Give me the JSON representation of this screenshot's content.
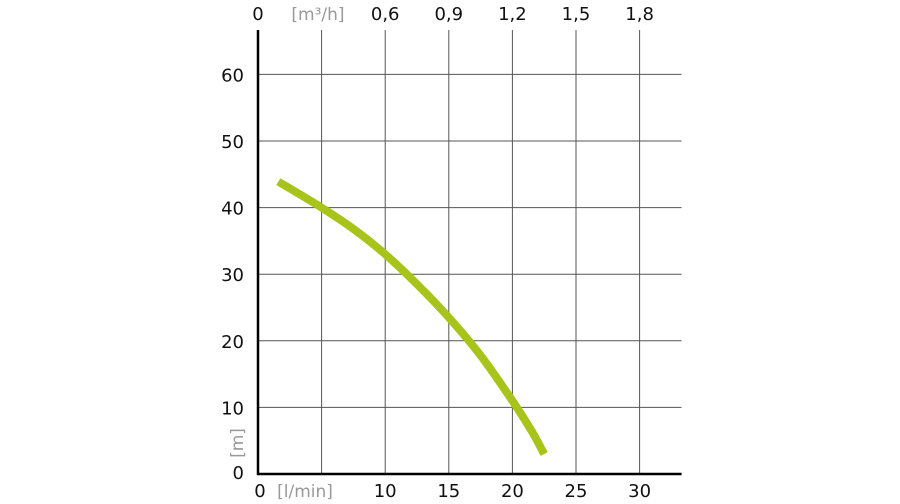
{
  "chart_data": {
    "type": "line",
    "title": "",
    "xlabel": "[l/min]",
    "ylabel": "[m]",
    "x2label": "[m³/h]",
    "xlim": [
      0,
      33
    ],
    "ylim": [
      0,
      67
    ],
    "x_ticks": [
      0,
      10,
      15,
      20,
      25,
      30
    ],
    "x_tick_labels": [
      "0",
      "10",
      "15",
      "20",
      "25",
      "30"
    ],
    "x2_ticks": [
      0,
      10,
      15,
      20,
      25,
      30
    ],
    "x2_tick_labels": [
      "0",
      "0,6",
      "0,9",
      "1,2",
      "1,5",
      "1,8"
    ],
    "y_ticks": [
      0,
      10,
      20,
      30,
      40,
      50,
      60
    ],
    "y_tick_labels": [
      "0",
      "10",
      "20",
      "30",
      "40",
      "50",
      "60"
    ],
    "grid": true,
    "series": [
      {
        "color": "#a8c31a",
        "x": [
          1.6,
          5,
          7.5,
          10,
          12.5,
          15,
          17.5,
          20,
          21.5,
          22.5
        ],
        "y": [
          43.9,
          40,
          36.8,
          33,
          28.5,
          23.5,
          17.8,
          11,
          6.5,
          3
        ]
      }
    ]
  }
}
